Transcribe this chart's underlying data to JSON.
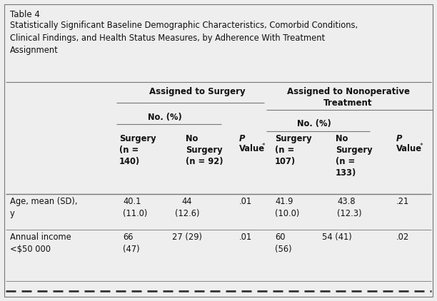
{
  "table_label": "Table 4",
  "title_lines": [
    "Statistically Significant Baseline Demographic Characteristics, Comorbid Conditions,",
    "Clinical Findings, and Health Status Measures, by Adherence With Treatment",
    "Assignment"
  ],
  "group1_header": "Assigned to Surgery",
  "group2_header": "Assigned to Nonoperative\nTreatment",
  "subheader": "No. (%)",
  "col_headers": [
    [
      "Surgery",
      "(n =",
      "140)"
    ],
    [
      "No",
      "Surgery",
      "(n = 92)"
    ],
    [
      "P",
      "Value*"
    ],
    [
      "Surgery",
      "(n =",
      "107)"
    ],
    [
      "No",
      "Surgery",
      "(n =",
      "133)"
    ],
    [
      "P",
      "Value*"
    ]
  ],
  "rows": [
    {
      "label": [
        "Age, mean (SD),",
        "y"
      ],
      "values": [
        "40.1\n(11.0)",
        "44\n(12.6)",
        ".01",
        "41.9\n(10.0)",
        "43.8\n(12.3)",
        ".21"
      ]
    },
    {
      "label": [
        "Annual income",
        "<$50 000"
      ],
      "values": [
        "66\n(47)",
        "27 (29)",
        ".01",
        "60\n(56)",
        "54 (41)",
        ".02"
      ]
    }
  ],
  "bg_color": "#eeeeee",
  "text_color": "#111111",
  "line_color": "#777777",
  "fs_table_label": 8.5,
  "fs_title": 8.3,
  "fs_group_hdr": 8.5,
  "fs_subhdr": 8.3,
  "fs_col_hdr": 8.3,
  "fs_data": 8.3
}
